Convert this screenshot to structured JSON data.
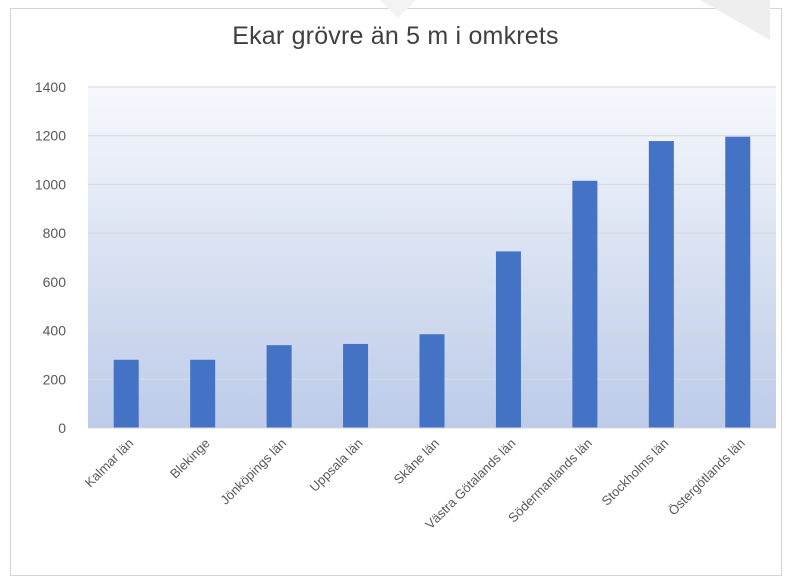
{
  "chart_data": {
    "type": "bar",
    "title": "Ekar grövre än 5 m i omkrets",
    "categories": [
      "Kalmar län",
      "Blekinge",
      "Jönköpings län",
      "Uppsala län",
      "Skåne län",
      "Västra Götalands län",
      "Södermanlands län",
      "Stockholms län",
      "Östergötlands län"
    ],
    "values": [
      280,
      280,
      340,
      345,
      385,
      725,
      1015,
      1178,
      1196
    ],
    "ylim": [
      0,
      1400
    ],
    "yticks": [
      "0",
      "200",
      "400",
      "600",
      "800",
      "1000",
      "1200",
      "1400"
    ],
    "xlabel": "",
    "ylabel": "",
    "grid": true,
    "colors": {
      "bar": "#4472c4",
      "plot_top": "#f6f8fc",
      "plot_bottom": "#bccbe9",
      "grid": "#d9d9d9",
      "tick_text": "#595959"
    }
  }
}
